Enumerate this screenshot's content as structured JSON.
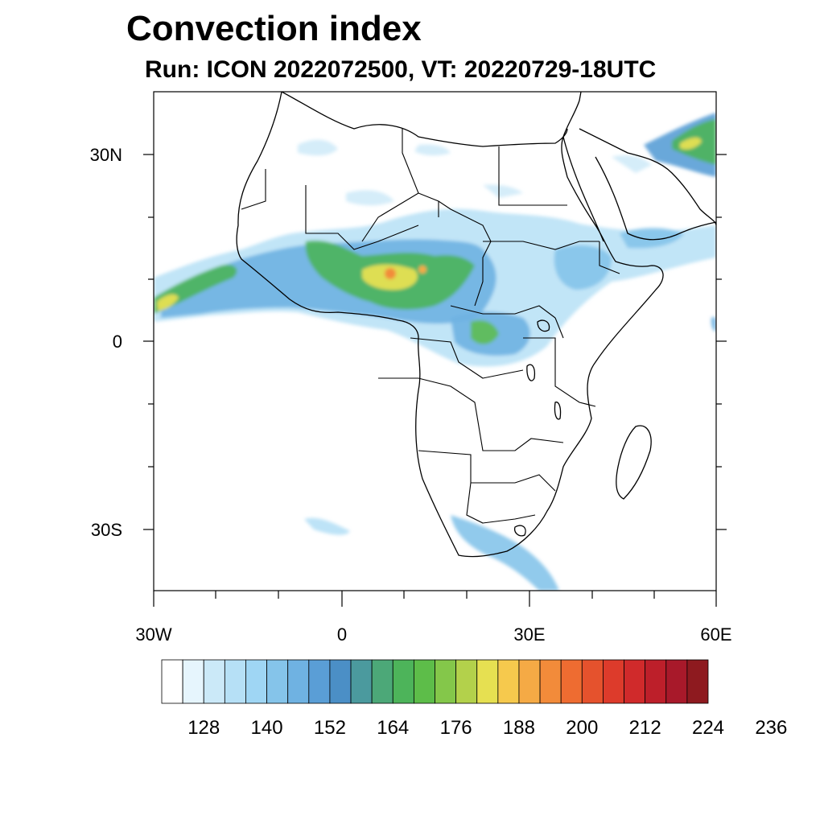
{
  "title": "Convection index",
  "subtitle": "Run: ICON 2022072500,  VT: 20220729-18UTC",
  "axes": {
    "lat_labels": [
      "30N",
      "0",
      "30S"
    ],
    "lon_labels": [
      "30W",
      "0",
      "30E",
      "60E"
    ]
  },
  "colorbar": {
    "labels": [
      "128",
      "140",
      "152",
      "164",
      "176",
      "188",
      "200",
      "212",
      "224",
      "236"
    ],
    "colors": [
      "#ffffff",
      "#e6f5fd",
      "#cbe9f8",
      "#b6e0f6",
      "#9fd6f4",
      "#85c4ea",
      "#6fb2e2",
      "#5a9ed6",
      "#4b8fc6",
      "#4b9a9e",
      "#4ca878",
      "#4db45a",
      "#5dbd49",
      "#84c74a",
      "#b3d14b",
      "#e6e051",
      "#f6c94d",
      "#f5aa45",
      "#f28b3a",
      "#ee6c31",
      "#e5522d",
      "#dd3b2b",
      "#d02a2b",
      "#bd1f2a",
      "#a8192a",
      "#8e1a1f"
    ]
  },
  "legend_colors": {
    "coast": "#000000",
    "low": "#9fd6f4",
    "mid": "#4db45a",
    "high": "#e6e051",
    "peak": "#f28b3a"
  }
}
